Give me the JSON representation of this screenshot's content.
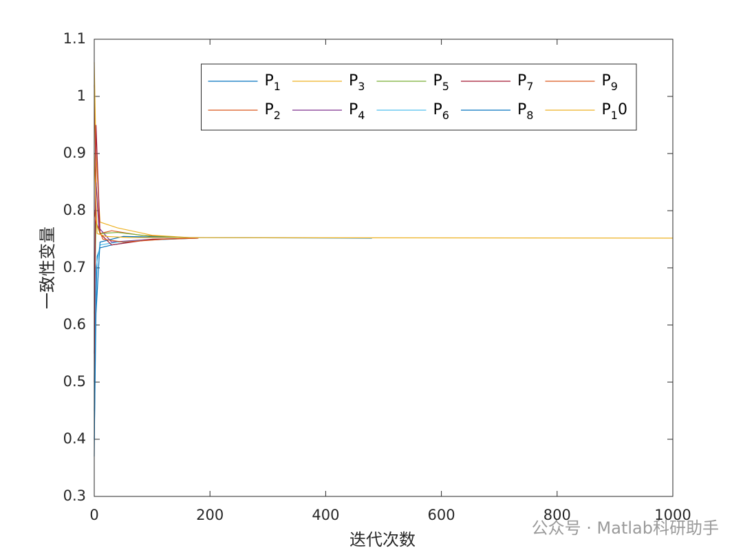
{
  "chart_data": {
    "type": "line",
    "xlabel": "迭代次数",
    "ylabel": "一致性变量",
    "watermark": "公众号 · Matlab科研助手",
    "xlim": [
      0,
      1000
    ],
    "ylim": [
      0.3,
      1.1
    ],
    "xticks": [
      0,
      200,
      400,
      600,
      800,
      1000
    ],
    "yticks": [
      0.3,
      0.4,
      0.5,
      0.6,
      0.7,
      0.8,
      0.9,
      1,
      1.1
    ],
    "legend": "top-right",
    "legend_columns": 5,
    "series": [
      {
        "name": "P1",
        "color": "#0072BD",
        "x": [
          0,
          2,
          5,
          10,
          30,
          80,
          180
        ],
        "values": [
          0.37,
          0.6,
          0.72,
          0.735,
          0.74,
          0.748,
          0.752
        ]
      },
      {
        "name": "P2",
        "color": "#D95319",
        "x": [
          0,
          3,
          10,
          30,
          80,
          180
        ],
        "values": [
          1.02,
          0.85,
          0.76,
          0.765,
          0.757,
          0.752
        ]
      },
      {
        "name": "P3",
        "color": "#EDB120",
        "x": [
          0,
          3,
          10,
          40,
          100,
          180
        ],
        "values": [
          1.06,
          0.9,
          0.78,
          0.77,
          0.757,
          0.752
        ]
      },
      {
        "name": "P4",
        "color": "#7E2F8E",
        "x": [
          0,
          3,
          8,
          30,
          100,
          180
        ],
        "values": [
          0.55,
          0.85,
          0.77,
          0.745,
          0.75,
          0.752
        ]
      },
      {
        "name": "P5",
        "color": "#77AC30",
        "x": [
          0,
          3,
          10,
          40,
          100,
          180
        ],
        "values": [
          0.62,
          0.78,
          0.76,
          0.762,
          0.755,
          0.752
        ]
      },
      {
        "name": "P6",
        "color": "#4DBEEE",
        "x": [
          0,
          3,
          10,
          40,
          120,
          180
        ],
        "values": [
          0.45,
          0.7,
          0.74,
          0.745,
          0.75,
          0.752
        ]
      },
      {
        "name": "P7",
        "color": "#A2142F",
        "x": [
          0,
          3,
          10,
          30,
          100,
          180
        ],
        "values": [
          0.5,
          0.95,
          0.76,
          0.74,
          0.75,
          0.752
        ]
      },
      {
        "name": "P8",
        "color": "#0072BD",
        "x": [
          0,
          3,
          10,
          50,
          150,
          480
        ],
        "values": [
          0.4,
          0.62,
          0.745,
          0.755,
          0.753,
          0.752
        ]
      },
      {
        "name": "P9",
        "color": "#D95319",
        "x": [
          0,
          3,
          15,
          50,
          120,
          180
        ],
        "values": [
          0.8,
          0.78,
          0.75,
          0.745,
          0.75,
          0.752
        ]
      },
      {
        "name": "P10",
        "color": "#EDB120",
        "x": [
          0,
          5,
          20,
          60,
          1000
        ],
        "values": [
          0.9,
          0.76,
          0.755,
          0.753,
          0.752
        ]
      }
    ]
  }
}
